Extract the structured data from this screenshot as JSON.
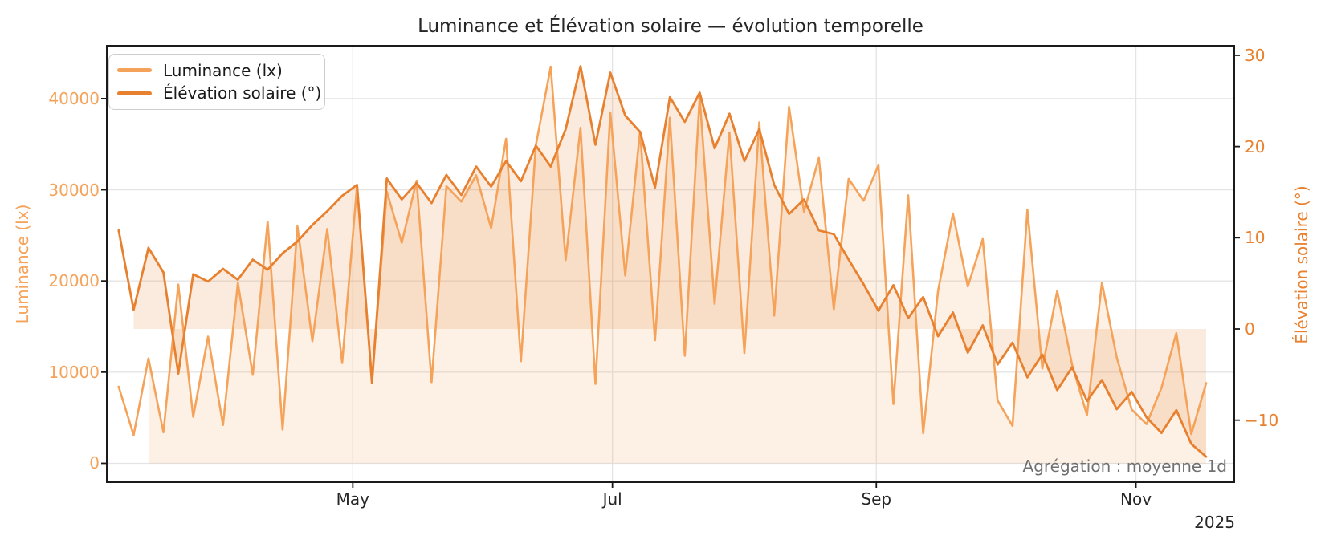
{
  "title": "Luminance et Élévation solaire — évolution temporelle",
  "annotation": {
    "text": "Agrégation : moyenne 1d",
    "color": "#707070"
  },
  "legend": {
    "position": "upper-left",
    "items": [
      {
        "label": "Luminance (lx)",
        "color": "#f5a35a"
      },
      {
        "label": "Élévation solaire (°)",
        "color": "#e8812f"
      }
    ]
  },
  "axes": {
    "left": {
      "label": "Luminance (lx)",
      "color": "#f5a35a",
      "ticks": [
        {
          "value": 0,
          "label": "0"
        },
        {
          "value": 10000,
          "label": "10000"
        },
        {
          "value": 20000,
          "label": "20000"
        },
        {
          "value": 30000,
          "label": "30000"
        },
        {
          "value": 40000,
          "label": "40000"
        }
      ]
    },
    "right": {
      "label": "Élévation solaire (°)",
      "color": "#e8812f",
      "ticks": [
        {
          "value": -10,
          "label": "−10"
        },
        {
          "value": 0,
          "label": "0"
        },
        {
          "value": 10,
          "label": "10"
        },
        {
          "value": 20,
          "label": "20"
        },
        {
          "value": 30,
          "label": "30"
        }
      ]
    },
    "x": {
      "year_label": "2025",
      "ticks": [
        {
          "day": 55,
          "label": "May"
        },
        {
          "day": 116,
          "label": "Jul"
        },
        {
          "day": 178,
          "label": "Sep"
        },
        {
          "day": 239,
          "label": "Nov"
        }
      ]
    }
  },
  "chart_data": {
    "type": "line",
    "title": "Luminance et Élévation solaire — évolution temporelle",
    "x_unit": "days since 2025-03-07 (daily means sampled ~3.5 d)",
    "x_start_date": "2025-03-07",
    "x_end_date": "2025-11-19",
    "aggregation": "moyenne 1d",
    "grid": true,
    "legend_position": "upper left",
    "xlim_days": [
      -2.8,
      262.1
    ],
    "ylim_left": [
      -2070,
      45800
    ],
    "ylim_right": [
      -16.8,
      31.05
    ],
    "x": [
      0,
      3.5,
      7,
      10.5,
      14,
      17.5,
      21,
      24.5,
      28,
      31.5,
      35,
      38.5,
      42,
      45.5,
      49,
      52.5,
      56,
      59.5,
      63,
      66.5,
      70,
      73.5,
      77,
      80.5,
      84,
      87.5,
      91,
      94.5,
      98,
      101.5,
      105,
      108.5,
      112,
      115.5,
      119,
      122.5,
      126,
      129.5,
      133,
      136.5,
      140,
      143.5,
      147,
      150.5,
      154,
      157.5,
      161,
      164.5,
      168,
      171.5,
      175,
      178.5,
      182,
      185.5,
      189,
      192.5,
      196,
      199.5,
      203,
      206.5,
      210,
      213.5,
      217,
      220.5,
      224,
      227.5,
      231,
      234.5,
      238,
      241.5,
      245,
      248.5,
      252,
      255.5
    ],
    "series": [
      {
        "name": "Luminance (lx)",
        "axis": "left",
        "color": "#f5a35a",
        "line_width": 2.6,
        "fill": true,
        "fill_opacity": 0.16,
        "fill_baseline": 0,
        "fill_start_index": 2,
        "values": [
          8400,
          3100,
          11500,
          3400,
          19600,
          5100,
          13900,
          4200,
          19800,
          9700,
          26500,
          3700,
          26000,
          13400,
          25700,
          11000,
          30500,
          9000,
          29800,
          24200,
          31000,
          8900,
          30400,
          28700,
          31600,
          25800,
          35600,
          11200,
          34900,
          43500,
          22300,
          36800,
          8700,
          38500,
          20600,
          36400,
          13500,
          37900,
          11800,
          40200,
          17500,
          36300,
          12100,
          37400,
          16200,
          39100,
          27600,
          33500,
          16900,
          31200,
          28800,
          32700,
          6500,
          29400,
          3300,
          18900,
          27400,
          19400,
          24600,
          6900,
          4100,
          27800,
          10400,
          18900,
          10800,
          5300,
          19800,
          11600,
          5900,
          4300,
          8300,
          14300,
          3200,
          8800
        ]
      },
      {
        "name": "Élévation solaire (°)",
        "axis": "right",
        "color": "#e8812f",
        "line_width": 2.8,
        "fill": true,
        "fill_opacity": 0.16,
        "fill_baseline": 0,
        "fill_start_index": 1,
        "values": [
          10.8,
          2.1,
          8.9,
          6.2,
          -4.9,
          6.0,
          5.2,
          6.6,
          5.4,
          7.6,
          6.5,
          8.3,
          9.6,
          11.4,
          12.9,
          14.6,
          15.8,
          -5.9,
          16.5,
          14.2,
          16.0,
          13.8,
          16.9,
          14.7,
          17.8,
          15.6,
          18.4,
          16.2,
          20.1,
          17.8,
          21.9,
          28.8,
          20.2,
          28.1,
          23.4,
          21.6,
          15.5,
          25.4,
          22.7,
          25.9,
          19.8,
          23.6,
          18.4,
          21.9,
          15.8,
          12.6,
          14.2,
          10.8,
          10.4,
          7.6,
          4.9,
          2.0,
          4.8,
          1.2,
          3.5,
          -0.8,
          1.8,
          -2.6,
          0.4,
          -3.9,
          -1.5,
          -5.3,
          -2.8,
          -6.7,
          -4.2,
          -7.9,
          -5.6,
          -8.8,
          -6.9,
          -9.7,
          -11.4,
          -8.9,
          -12.6,
          -14.0
        ]
      }
    ]
  }
}
